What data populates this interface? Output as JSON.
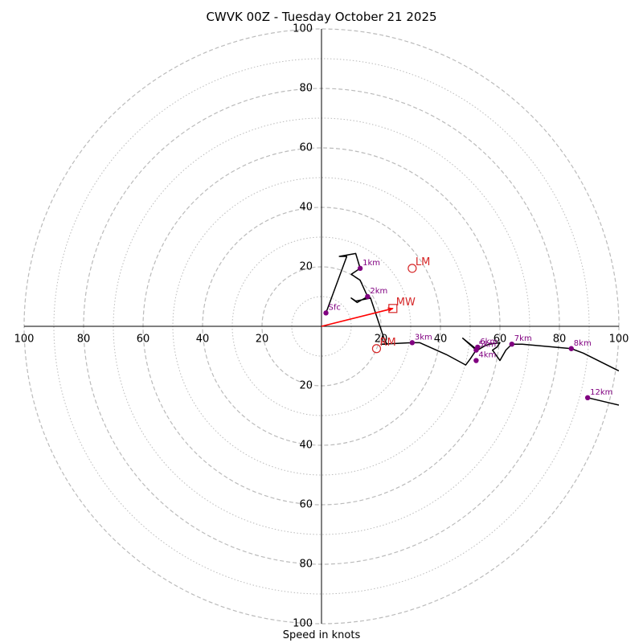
{
  "chart_data": {
    "type": "hodograph",
    "title": "CWVK 00Z - Tuesday October 21 2025",
    "xlabel": "Speed in knots",
    "range": [
      -100,
      100
    ],
    "ring_major": [
      20,
      40,
      60,
      80,
      100
    ],
    "ring_minor": [
      10,
      30,
      50,
      70,
      90
    ],
    "tick_labels": {
      "left": [
        "100",
        "80",
        "60",
        "40",
        "20"
      ],
      "right": [
        "20",
        "40",
        "60",
        "80",
        "100"
      ],
      "top": [
        "100",
        "80",
        "60",
        "40",
        "20"
      ],
      "bottom": [
        "20",
        "40",
        "60",
        "80",
        "100"
      ]
    },
    "trace": [
      [
        1.5,
        4.5
      ],
      [
        8.5,
        23.5
      ],
      [
        6,
        23.5
      ],
      [
        11.5,
        24.5
      ],
      [
        13,
        19.5
      ],
      [
        10,
        17.5
      ],
      [
        13,
        15.5
      ],
      [
        15.5,
        10
      ],
      [
        16.5,
        9.5
      ],
      [
        11.5,
        8.5
      ],
      [
        10,
        9.5
      ],
      [
        12,
        8
      ],
      [
        15.5,
        10
      ],
      [
        16.5,
        9.5
      ],
      [
        18,
        5
      ],
      [
        21,
        -4
      ],
      [
        22,
        -6
      ],
      [
        20,
        -6
      ],
      [
        30.5,
        -5.5
      ],
      [
        33,
        -5.5
      ],
      [
        42,
        -9.5
      ],
      [
        48.5,
        -13
      ],
      [
        50,
        -11
      ],
      [
        52,
        -8
      ],
      [
        47.5,
        -4
      ],
      [
        52.5,
        -8
      ],
      [
        55,
        -6.5
      ],
      [
        56.5,
        -6
      ],
      [
        60,
        -5.5
      ],
      [
        59,
        -7
      ],
      [
        57.5,
        -8
      ],
      [
        60,
        -11.5
      ],
      [
        62,
        -8
      ],
      [
        64,
        -6
      ],
      [
        67.5,
        -6
      ],
      [
        84,
        -7.5
      ],
      [
        88,
        -9
      ],
      [
        100,
        -15
      ]
    ],
    "trace_upper": [
      [
        89.5,
        -24
      ],
      [
        100,
        -26.5
      ]
    ],
    "heights": [
      {
        "label": "Sfc",
        "u": 1.5,
        "v": 4.5
      },
      {
        "label": "1km",
        "u": 13,
        "v": 19.5
      },
      {
        "label": "2km",
        "u": 15.5,
        "v": 10
      },
      {
        "label": "3km",
        "u": 30.5,
        "v": -5.5
      },
      {
        "label": "4km",
        "u": 52,
        "v": -11.5
      },
      {
        "label": "5km",
        "u": 52,
        "v": -8
      },
      {
        "label": "6km",
        "u": 52.5,
        "v": -7
      },
      {
        "label": "7km",
        "u": 64,
        "v": -6
      },
      {
        "label": "8km",
        "u": 84,
        "v": -7.5
      },
      {
        "label": "12km",
        "u": 89.5,
        "v": -24
      }
    ],
    "storm_motion": [
      {
        "label": "LM",
        "u": 30.5,
        "v": 19.5,
        "marker": "circle"
      },
      {
        "label": "RM",
        "u": 18.5,
        "v": -7.5,
        "marker": "circle"
      },
      {
        "label": "MW",
        "u": 24,
        "v": 6,
        "marker": "square"
      }
    ],
    "shear_vector": {
      "u": 24,
      "v": 6
    },
    "colors": {
      "trace": "#000000",
      "height_marker": "#800080",
      "motion": "#d62728",
      "shear": "#ff0000",
      "grid": "#bbbbbb",
      "axes": "#000000"
    }
  }
}
